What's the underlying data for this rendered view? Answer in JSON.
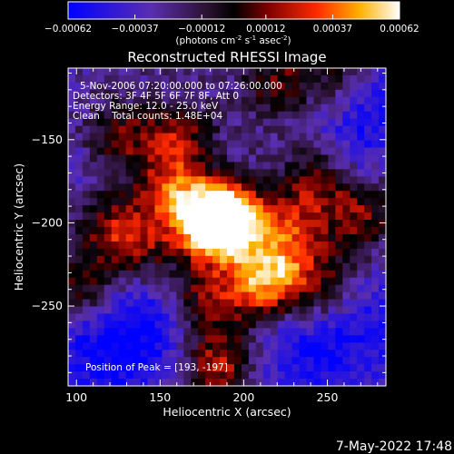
{
  "title": "Reconstructed RHESSI Image",
  "timestamp": "7-May-2022 17:48",
  "colorbar": {
    "ticks": [
      "-0.00062",
      "-0.00037",
      "-0.00012",
      "0.00012",
      "0.00037",
      "0.00062"
    ],
    "units_line": [
      "(photons cm",
      "-2",
      " s",
      "-1",
      " asec",
      "-2",
      ")"
    ],
    "min": -0.00062,
    "max": 0.00062
  },
  "annotations": [
    "5-Nov-2006 07:20:00.000 to 07:26:00.000",
    "Detectors: 3F 4F 5F 6F 7F 8F, Att 0",
    "Energy Range: 12.0 - 25.0 keV",
    "Clean    Total counts: 1.48E+04"
  ],
  "peak_label": "Position of Peak = [193, -197]",
  "colors": {
    "background": "#000000",
    "text": "#ffffff"
  },
  "chart_data": {
    "type": "heatmap",
    "title": "Reconstructed RHESSI Image",
    "xlabel": "Heliocentric X (arcsec)",
    "ylabel": "Heliocentric Y (arcsec)",
    "xlim": [
      95,
      285
    ],
    "ylim": [
      -298,
      -107
    ],
    "xticks": [
      100,
      150,
      200,
      250
    ],
    "yticks": [
      -150,
      -200,
      -250
    ],
    "peak": [
      193,
      -197
    ],
    "grid": false,
    "colormap": "blue-purple-black-red-yellow-white",
    "blobs": [
      {
        "x": 193,
        "y": -197,
        "amp": 1.0
      },
      {
        "x": 185,
        "y": -203,
        "amp": 0.85
      },
      {
        "x": 170,
        "y": -195,
        "amp": 0.7
      },
      {
        "x": 135,
        "y": -215,
        "amp": 0.55
      },
      {
        "x": 120,
        "y": -200,
        "amp": 0.45
      },
      {
        "x": 105,
        "y": -240,
        "amp": 0.5
      },
      {
        "x": 160,
        "y": -150,
        "amp": 0.55
      },
      {
        "x": 125,
        "y": -148,
        "amp": 0.5
      },
      {
        "x": 220,
        "y": -230,
        "amp": 0.7
      },
      {
        "x": 205,
        "y": -240,
        "amp": 0.55
      },
      {
        "x": 250,
        "y": -238,
        "amp": 0.45
      },
      {
        "x": 270,
        "y": -195,
        "amp": 0.55
      },
      {
        "x": 242,
        "y": -175,
        "amp": 0.5
      },
      {
        "x": 175,
        "y": -245,
        "amp": 0.5
      },
      {
        "x": 185,
        "y": -285,
        "amp": 0.75
      },
      {
        "x": 155,
        "y": -178,
        "amp": 0.5
      },
      {
        "x": 220,
        "y": -115,
        "amp": 0.45
      },
      {
        "x": 255,
        "y": -110,
        "amp": 0.35
      },
      {
        "x": 230,
        "y": -205,
        "amp": 0.55
      }
    ],
    "troughs": [
      {
        "x": 110,
        "y": -280,
        "amp": -0.7
      },
      {
        "x": 135,
        "y": -250,
        "amp": -0.6
      },
      {
        "x": 270,
        "y": -150,
        "amp": -0.55
      },
      {
        "x": 260,
        "y": -275,
        "amp": -0.6
      },
      {
        "x": 225,
        "y": -285,
        "amp": -0.55
      },
      {
        "x": 145,
        "y": -280,
        "amp": -0.5
      },
      {
        "x": 100,
        "y": -165,
        "amp": -0.3
      },
      {
        "x": 280,
        "y": -250,
        "amp": -0.45
      },
      {
        "x": 280,
        "y": -120,
        "amp": -0.4
      }
    ]
  }
}
